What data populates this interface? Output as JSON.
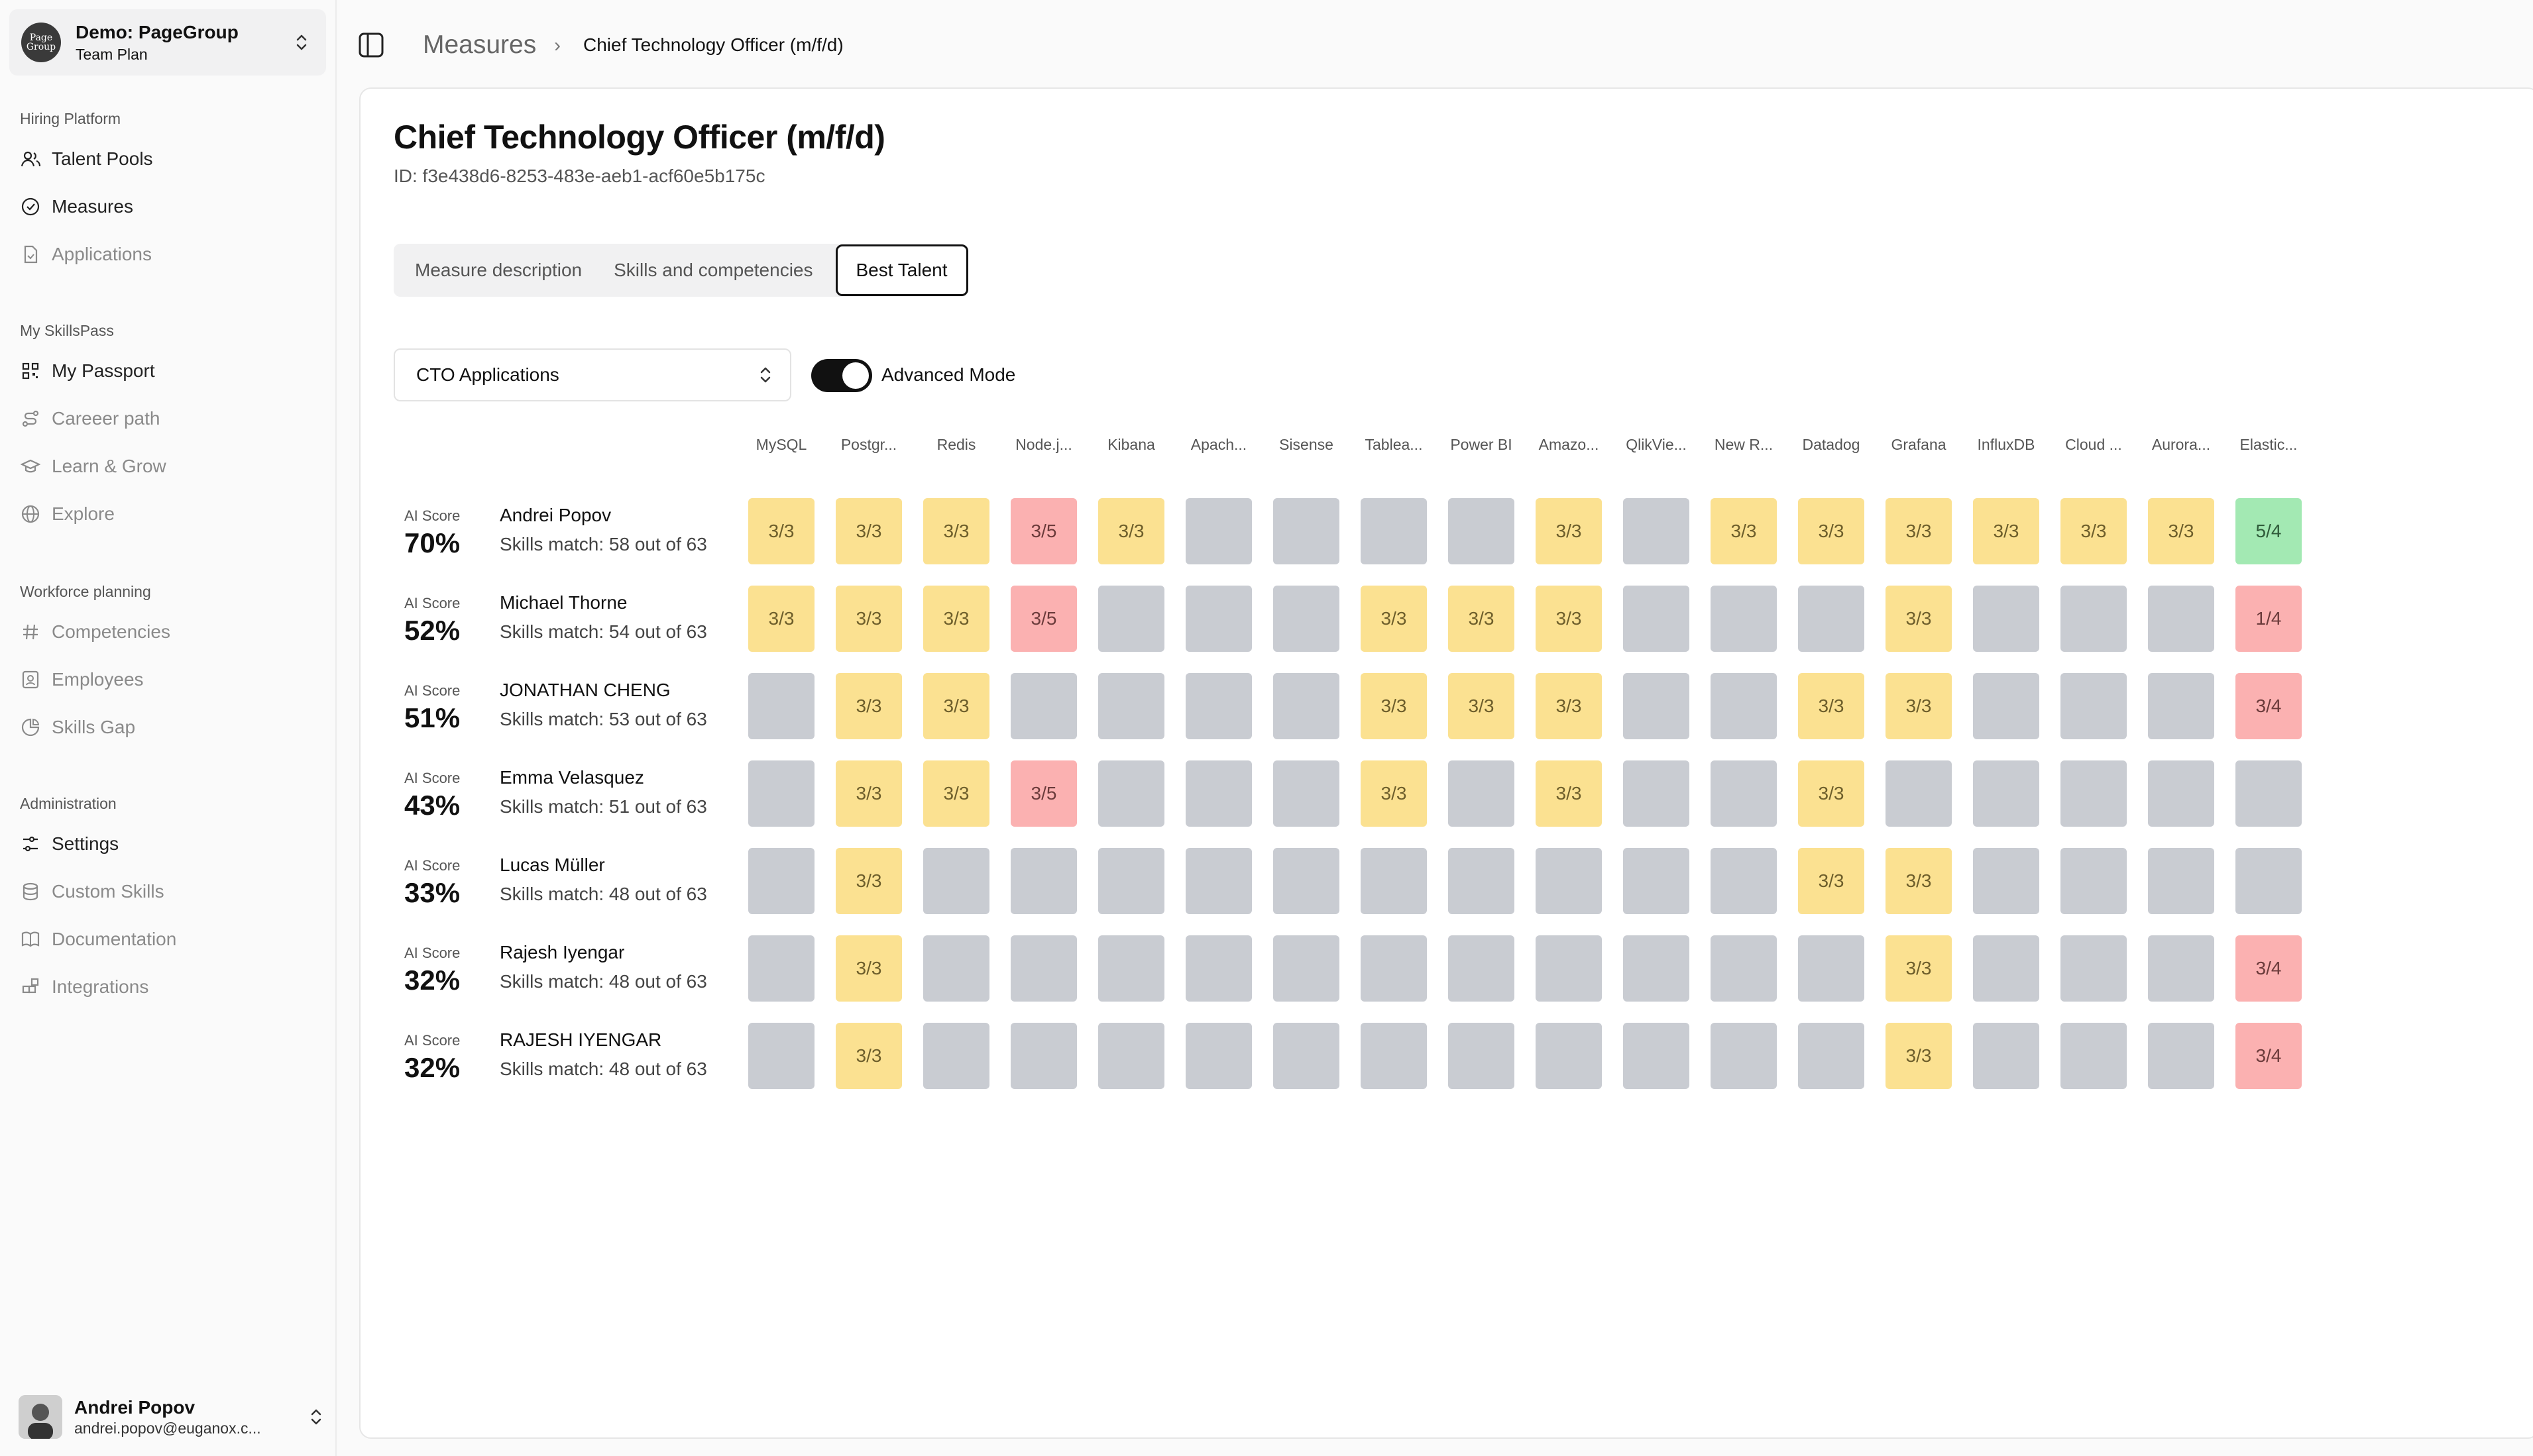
{
  "org": {
    "name": "Demo: PageGroup",
    "plan": "Team Plan",
    "logo_text": "Page Group"
  },
  "sidebar": {
    "sections": [
      {
        "label": "Hiring Platform",
        "items": [
          {
            "label": "Talent Pools",
            "icon": "users-icon",
            "active": true
          },
          {
            "label": "Measures",
            "icon": "check-circle-icon",
            "active": true
          },
          {
            "label": "Applications",
            "icon": "file-icon",
            "active": false
          }
        ]
      },
      {
        "label": "My SkillsPass",
        "items": [
          {
            "label": "My Passport",
            "icon": "qr-icon",
            "active": true
          },
          {
            "label": "Careeer path",
            "icon": "route-icon",
            "active": false
          },
          {
            "label": "Learn & Grow",
            "icon": "graduation-icon",
            "active": false
          },
          {
            "label": "Explore",
            "icon": "globe-icon",
            "active": false
          }
        ]
      },
      {
        "label": "Workforce planning",
        "items": [
          {
            "label": "Competencies",
            "icon": "hash-icon",
            "active": false
          },
          {
            "label": "Employees",
            "icon": "id-card-icon",
            "active": false
          },
          {
            "label": "Skills Gap",
            "icon": "pie-icon",
            "active": false
          }
        ]
      },
      {
        "label": "Administration",
        "items": [
          {
            "label": "Settings",
            "icon": "sliders-icon",
            "active": true
          },
          {
            "label": "Custom Skills",
            "icon": "database-icon",
            "active": false
          },
          {
            "label": "Documentation",
            "icon": "book-icon",
            "active": false
          },
          {
            "label": "Integrations",
            "icon": "blocks-icon",
            "active": false
          }
        ]
      }
    ]
  },
  "user": {
    "name": "Andrei Popov",
    "email": "andrei.popov@euganox.c..."
  },
  "breadcrumb": {
    "root": "Measures",
    "separator": "›",
    "current": "Chief Technology Officer (m/f/d)"
  },
  "page": {
    "title": "Chief Technology Officer (m/f/d)",
    "id": "ID: f3e438d6-8253-483e-aeb1-acf60e5b175c"
  },
  "tabs": [
    {
      "label": "Measure description",
      "active": false
    },
    {
      "label": "Skills and competencies",
      "active": false
    },
    {
      "label": "Best Talent",
      "active": true
    }
  ],
  "filter": {
    "selected": "CTO Applications"
  },
  "advanced_mode": {
    "label": "Advanced Mode",
    "on": true
  },
  "ai_score_label": "AI Score",
  "columns": [
    "MySQL",
    "Postgr...",
    "Redis",
    "Node.j...",
    "Kibana",
    "Apach...",
    "Sisense",
    "Tablea...",
    "Power BI",
    "Amazo...",
    "QlikVie...",
    "New R...",
    "Datadog",
    "Grafana",
    "InfluxDB",
    "Cloud ...",
    "Aurora...",
    "Elastic..."
  ],
  "colors": {
    "yellow": "#fbe191",
    "gray": "#c9ccd2",
    "red": "#fbb1b1",
    "green": "#a3e9b3"
  },
  "candidates": [
    {
      "name": "Andrei Popov",
      "score": "70%",
      "match": "Skills match: 58 out of 63",
      "cells": [
        [
          "y",
          "3/3"
        ],
        [
          "y",
          "3/3"
        ],
        [
          "y",
          "3/3"
        ],
        [
          "r",
          "3/5"
        ],
        [
          "y",
          "3/3"
        ],
        [
          "g",
          ""
        ],
        [
          "g",
          ""
        ],
        [
          "g",
          ""
        ],
        [
          "g",
          ""
        ],
        [
          "y",
          "3/3"
        ],
        [
          "g",
          ""
        ],
        [
          "y",
          "3/3"
        ],
        [
          "y",
          "3/3"
        ],
        [
          "y",
          "3/3"
        ],
        [
          "y",
          "3/3"
        ],
        [
          "y",
          "3/3"
        ],
        [
          "y",
          "3/3"
        ],
        [
          "n",
          "5/4"
        ]
      ]
    },
    {
      "name": "Michael Thorne",
      "score": "52%",
      "match": "Skills match: 54 out of 63",
      "cells": [
        [
          "y",
          "3/3"
        ],
        [
          "y",
          "3/3"
        ],
        [
          "y",
          "3/3"
        ],
        [
          "r",
          "3/5"
        ],
        [
          "g",
          ""
        ],
        [
          "g",
          ""
        ],
        [
          "g",
          ""
        ],
        [
          "y",
          "3/3"
        ],
        [
          "y",
          "3/3"
        ],
        [
          "y",
          "3/3"
        ],
        [
          "g",
          ""
        ],
        [
          "g",
          ""
        ],
        [
          "g",
          ""
        ],
        [
          "y",
          "3/3"
        ],
        [
          "g",
          ""
        ],
        [
          "g",
          ""
        ],
        [
          "g",
          ""
        ],
        [
          "r",
          "1/4"
        ]
      ]
    },
    {
      "name": "JONATHAN CHENG",
      "score": "51%",
      "match": "Skills match: 53 out of 63",
      "cells": [
        [
          "g",
          ""
        ],
        [
          "y",
          "3/3"
        ],
        [
          "y",
          "3/3"
        ],
        [
          "g",
          ""
        ],
        [
          "g",
          ""
        ],
        [
          "g",
          ""
        ],
        [
          "g",
          ""
        ],
        [
          "y",
          "3/3"
        ],
        [
          "y",
          "3/3"
        ],
        [
          "y",
          "3/3"
        ],
        [
          "g",
          ""
        ],
        [
          "g",
          ""
        ],
        [
          "y",
          "3/3"
        ],
        [
          "y",
          "3/3"
        ],
        [
          "g",
          ""
        ],
        [
          "g",
          ""
        ],
        [
          "g",
          ""
        ],
        [
          "r",
          "3/4"
        ]
      ]
    },
    {
      "name": "Emma Velasquez",
      "score": "43%",
      "match": "Skills match: 51 out of 63",
      "cells": [
        [
          "g",
          ""
        ],
        [
          "y",
          "3/3"
        ],
        [
          "y",
          "3/3"
        ],
        [
          "r",
          "3/5"
        ],
        [
          "g",
          ""
        ],
        [
          "g",
          ""
        ],
        [
          "g",
          ""
        ],
        [
          "y",
          "3/3"
        ],
        [
          "g",
          ""
        ],
        [
          "y",
          "3/3"
        ],
        [
          "g",
          ""
        ],
        [
          "g",
          ""
        ],
        [
          "y",
          "3/3"
        ],
        [
          "g",
          ""
        ],
        [
          "g",
          ""
        ],
        [
          "g",
          ""
        ],
        [
          "g",
          ""
        ],
        [
          "g",
          ""
        ]
      ]
    },
    {
      "name": "Lucas Müller",
      "score": "33%",
      "match": "Skills match: 48 out of 63",
      "cells": [
        [
          "g",
          ""
        ],
        [
          "y",
          "3/3"
        ],
        [
          "g",
          ""
        ],
        [
          "g",
          ""
        ],
        [
          "g",
          ""
        ],
        [
          "g",
          ""
        ],
        [
          "g",
          ""
        ],
        [
          "g",
          ""
        ],
        [
          "g",
          ""
        ],
        [
          "g",
          ""
        ],
        [
          "g",
          ""
        ],
        [
          "g",
          ""
        ],
        [
          "y",
          "3/3"
        ],
        [
          "y",
          "3/3"
        ],
        [
          "g",
          ""
        ],
        [
          "g",
          ""
        ],
        [
          "g",
          ""
        ],
        [
          "g",
          ""
        ]
      ]
    },
    {
      "name": "Rajesh Iyengar",
      "score": "32%",
      "match": "Skills match: 48 out of 63",
      "cells": [
        [
          "g",
          ""
        ],
        [
          "y",
          "3/3"
        ],
        [
          "g",
          ""
        ],
        [
          "g",
          ""
        ],
        [
          "g",
          ""
        ],
        [
          "g",
          ""
        ],
        [
          "g",
          ""
        ],
        [
          "g",
          ""
        ],
        [
          "g",
          ""
        ],
        [
          "g",
          ""
        ],
        [
          "g",
          ""
        ],
        [
          "g",
          ""
        ],
        [
          "g",
          ""
        ],
        [
          "y",
          "3/3"
        ],
        [
          "g",
          ""
        ],
        [
          "g",
          ""
        ],
        [
          "g",
          ""
        ],
        [
          "r",
          "3/4"
        ]
      ]
    },
    {
      "name": "RAJESH IYENGAR",
      "score": "32%",
      "match": "Skills match: 48 out of 63",
      "cells": [
        [
          "g",
          ""
        ],
        [
          "y",
          "3/3"
        ],
        [
          "g",
          ""
        ],
        [
          "g",
          ""
        ],
        [
          "g",
          ""
        ],
        [
          "g",
          ""
        ],
        [
          "g",
          ""
        ],
        [
          "g",
          ""
        ],
        [
          "g",
          ""
        ],
        [
          "g",
          ""
        ],
        [
          "g",
          ""
        ],
        [
          "g",
          ""
        ],
        [
          "g",
          ""
        ],
        [
          "y",
          "3/3"
        ],
        [
          "g",
          ""
        ],
        [
          "g",
          ""
        ],
        [
          "g",
          ""
        ],
        [
          "r",
          "3/4"
        ]
      ]
    }
  ]
}
